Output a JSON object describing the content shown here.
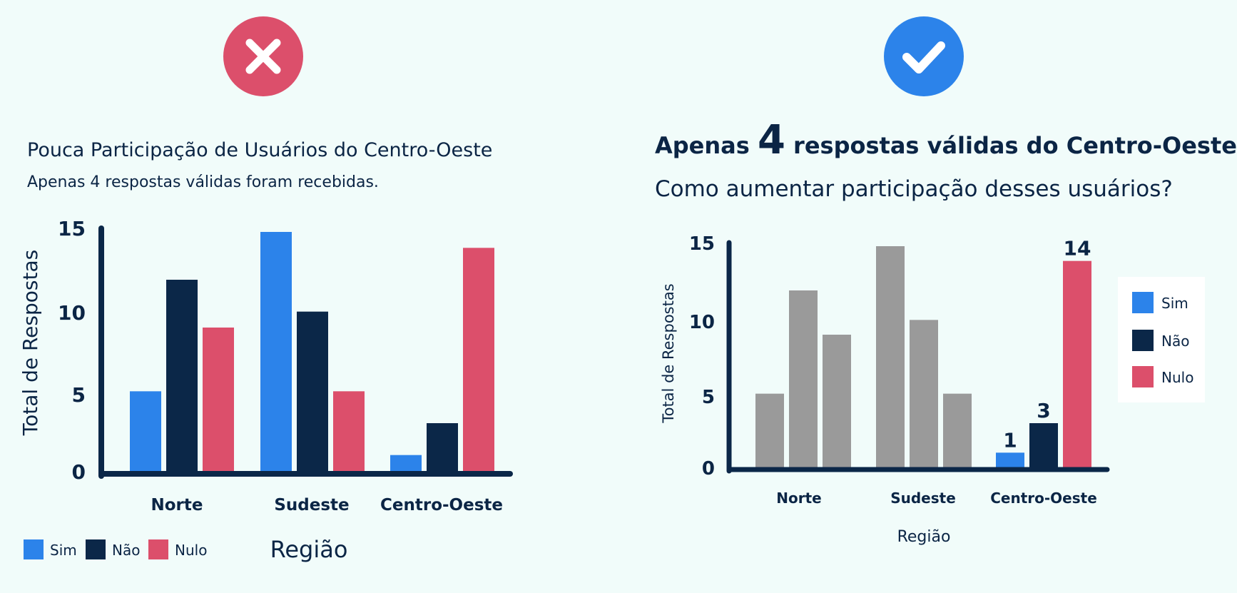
{
  "colors": {
    "sim": "#2c83ea",
    "nao": "#0b2748",
    "nulo": "#dc4f6b",
    "gray": "#9a9a9a",
    "axis": "#0b2748",
    "text": "#0b2545",
    "bad_badge": "#dc4f6b",
    "good_badge": "#2c83ea"
  },
  "left": {
    "badge_icon": "close-icon",
    "title": "Pouca Participação de Usuários do Centro-Oeste",
    "subtitle": "Apenas 4 respostas válidas foram recebidas."
  },
  "right": {
    "badge_icon": "check-icon",
    "title_pre": "Apenas ",
    "title_num": "4",
    "title_post": " respostas válidas do Centro-Oeste",
    "subtitle": "Como aumentar participação desses usuários?"
  },
  "chart_data": [
    {
      "type": "bar",
      "categories": [
        "Norte",
        "Sudeste",
        "Centro-Oeste"
      ],
      "series": [
        {
          "name": "Sim",
          "values": [
            5,
            15,
            1
          ]
        },
        {
          "name": "Não",
          "values": [
            12,
            10,
            3
          ]
        },
        {
          "name": "Nulo",
          "values": [
            9,
            5,
            14
          ]
        }
      ],
      "title": "",
      "xlabel": "Região",
      "ylabel": "Total de Respostas",
      "ylim": [
        0,
        15
      ],
      "yticks": [
        "0",
        "5",
        "10",
        "15"
      ],
      "legend": "bottom-left",
      "grid": false
    },
    {
      "type": "bar",
      "categories": [
        "Norte",
        "Sudeste",
        "Centro-Oeste"
      ],
      "series": [
        {
          "name": "Sim",
          "values": [
            5,
            15,
            1
          ]
        },
        {
          "name": "Não",
          "values": [
            12,
            10,
            3
          ]
        },
        {
          "name": "Nulo",
          "values": [
            9,
            5,
            14
          ]
        }
      ],
      "data_labels": {
        "Centro-Oeste": [
          "1",
          "3",
          "14"
        ]
      },
      "highlight_category": "Centro-Oeste",
      "title": "",
      "xlabel": "Região",
      "ylabel": "Total de Respostas",
      "ylim": [
        0,
        15
      ],
      "yticks": [
        "0",
        "5",
        "10",
        "15"
      ],
      "legend": "right",
      "grid": false
    }
  ]
}
